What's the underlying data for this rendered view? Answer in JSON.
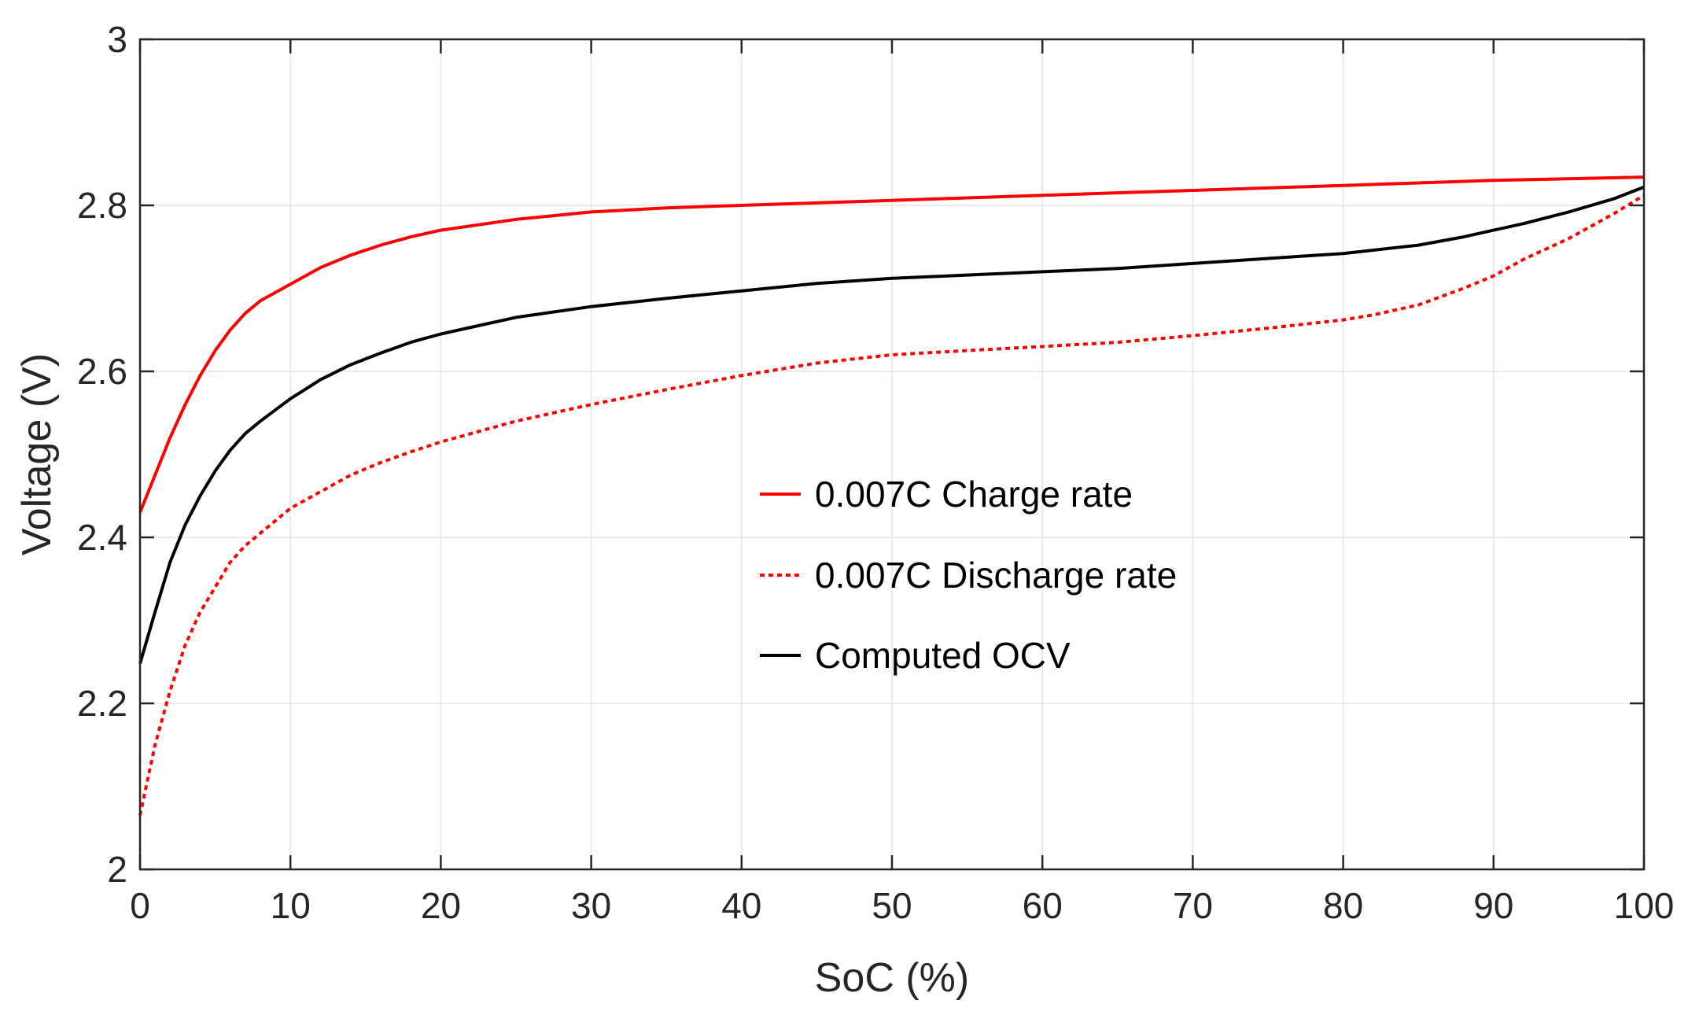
{
  "chart_data": {
    "type": "line",
    "xlabel": "SoC (%)",
    "ylabel": "Voltage (V)",
    "xlim": [
      0,
      100
    ],
    "ylim": [
      2,
      3
    ],
    "xticks": [
      0,
      10,
      20,
      30,
      40,
      50,
      60,
      70,
      80,
      90,
      100
    ],
    "xtick_labels": [
      "0",
      "10",
      "20",
      "30",
      "40",
      "50",
      "60",
      "70",
      "80",
      "90",
      "100"
    ],
    "yticks": [
      2,
      2.2,
      2.4,
      2.6,
      2.8,
      3
    ],
    "ytick_labels": [
      "2",
      "2.2",
      "2.4",
      "2.6",
      "2.8",
      "3"
    ],
    "grid": true,
    "legend_position": "center-right",
    "series": [
      {
        "name": "0.007C Charge rate",
        "color": "#ff0000",
        "line_style": "solid",
        "x": [
          0,
          1,
          2,
          3,
          4,
          5,
          6,
          7,
          8,
          10,
          12,
          14,
          16,
          18,
          20,
          25,
          30,
          35,
          40,
          50,
          60,
          70,
          80,
          90,
          100
        ],
        "y": [
          2.43,
          2.475,
          2.52,
          2.56,
          2.595,
          2.625,
          2.65,
          2.67,
          2.685,
          2.705,
          2.725,
          2.74,
          2.752,
          2.762,
          2.77,
          2.783,
          2.792,
          2.797,
          2.8,
          2.806,
          2.812,
          2.818,
          2.824,
          2.83,
          2.834
        ]
      },
      {
        "name": "0.007C Discharge rate",
        "color": "#ff0000",
        "line_style": "dashed",
        "x": [
          0,
          1,
          2,
          3,
          4,
          5,
          6,
          7,
          8,
          10,
          12,
          14,
          16,
          18,
          20,
          25,
          30,
          35,
          40,
          45,
          50,
          55,
          60,
          65,
          70,
          75,
          80,
          82,
          85,
          88,
          90,
          92,
          95,
          98,
          100
        ],
        "y": [
          2.065,
          2.15,
          2.215,
          2.27,
          2.31,
          2.34,
          2.37,
          2.39,
          2.405,
          2.435,
          2.455,
          2.475,
          2.49,
          2.503,
          2.515,
          2.54,
          2.56,
          2.578,
          2.595,
          2.61,
          2.62,
          2.625,
          2.63,
          2.635,
          2.643,
          2.652,
          2.662,
          2.668,
          2.68,
          2.7,
          2.715,
          2.735,
          2.76,
          2.79,
          2.812
        ]
      },
      {
        "name": "Computed OCV",
        "color": "#000000",
        "line_style": "solid",
        "x": [
          0,
          1,
          2,
          3,
          4,
          5,
          6,
          7,
          8,
          10,
          12,
          14,
          16,
          18,
          20,
          25,
          30,
          35,
          40,
          45,
          50,
          55,
          60,
          65,
          70,
          75,
          80,
          85,
          88,
          90,
          92,
          95,
          98,
          100
        ],
        "y": [
          2.248,
          2.31,
          2.37,
          2.415,
          2.45,
          2.48,
          2.505,
          2.525,
          2.54,
          2.567,
          2.59,
          2.608,
          2.622,
          2.635,
          2.645,
          2.665,
          2.678,
          2.688,
          2.697,
          2.706,
          2.712,
          2.716,
          2.72,
          2.724,
          2.73,
          2.736,
          2.742,
          2.752,
          2.762,
          2.77,
          2.778,
          2.792,
          2.808,
          2.822
        ]
      }
    ]
  }
}
